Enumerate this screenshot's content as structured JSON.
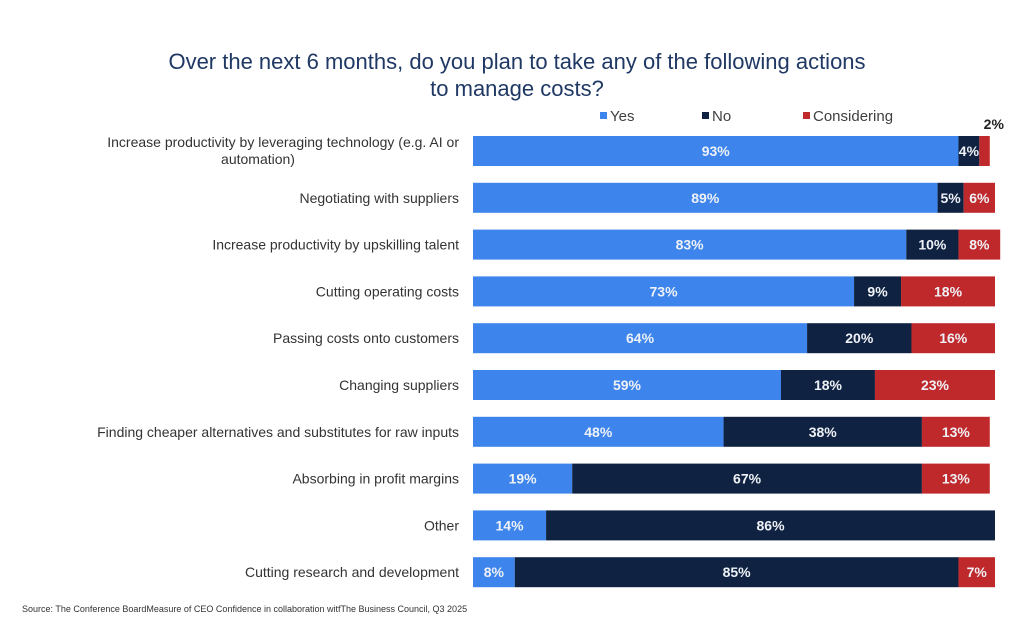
{
  "title_lines": [
    "Over the next 6 months, do you plan to take any of the following actions",
    "to manage costs?"
  ],
  "source": "Source: The Conference BoardMeasure of CEO Confidence in collaboration witfThe Business Council, Q3 2025",
  "colors": {
    "yes": "#3d85ec",
    "no": "#0f2241",
    "considering": "#c0292b",
    "title": "#1f3864"
  },
  "chart_data": {
    "type": "bar",
    "orientation": "horizontal",
    "stacked": true,
    "title": "Over the next 6 months, do you plan to take any of the following actions to manage costs?",
    "xlabel": "",
    "ylabel": "",
    "xlim": [
      0,
      100
    ],
    "unit": "%",
    "grid": false,
    "legend_position": "top-right",
    "categories": [
      [
        "Increase productivity by leveraging technology (e.g. AI or",
        "automation)"
      ],
      [
        "Negotiating with suppliers"
      ],
      [
        "Increase productivity by upskilling talent"
      ],
      [
        "Cutting operating costs"
      ],
      [
        "Passing costs onto customers"
      ],
      [
        "Changing suppliers"
      ],
      [
        "Finding cheaper alternatives and substitutes for raw inputs"
      ],
      [
        "Absorbing in profit margins"
      ],
      [
        "Other"
      ],
      [
        "Cutting research and development"
      ]
    ],
    "series": [
      {
        "name": "Yes",
        "key": "yes",
        "values": [
          93,
          89,
          83,
          73,
          64,
          59,
          48,
          19,
          14,
          8
        ]
      },
      {
        "name": "No",
        "key": "no",
        "values": [
          4,
          5,
          10,
          9,
          20,
          18,
          38,
          67,
          86,
          85
        ]
      },
      {
        "name": "Considering",
        "key": "considering",
        "values": [
          2,
          6,
          8,
          18,
          16,
          23,
          13,
          13,
          0,
          7
        ]
      }
    ],
    "labels_outside": [
      {
        "row": 0,
        "series": "considering",
        "text": "2%"
      }
    ]
  }
}
